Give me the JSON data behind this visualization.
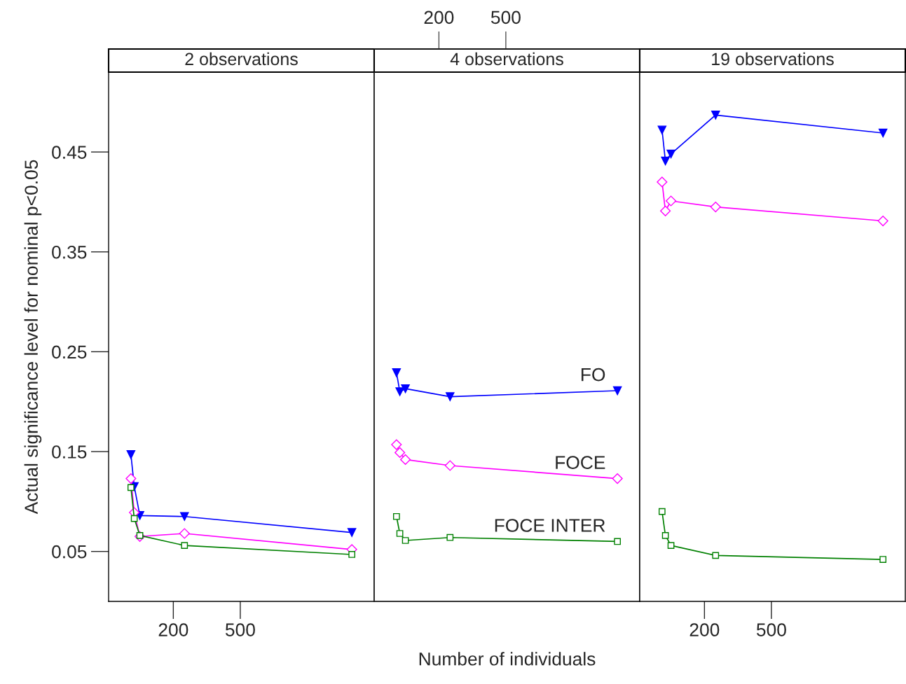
{
  "chart_data": [
    {
      "type": "line",
      "title": "2 observations",
      "ylabel": "Actual significance level for nominal p<0.05",
      "x": [
        10,
        25,
        50,
        250,
        1000
      ],
      "xlim": [
        -90,
        1100
      ],
      "xticks": [
        200,
        500
      ],
      "ylim": [
        0,
        0.53
      ],
      "yticks": [
        0.05,
        0.15,
        0.25,
        0.35,
        0.45
      ],
      "grid": false,
      "legend": false,
      "series": [
        {
          "color": "#0000ff",
          "marker": "triangle",
          "values": [
            0.147,
            0.115,
            0.086,
            0.085,
            0.069
          ]
        },
        {
          "color": "#ff00ff",
          "marker": "diamond",
          "values": [
            0.123,
            0.089,
            0.065,
            0.068,
            0.052
          ]
        },
        {
          "color": "#008000",
          "marker": "square",
          "values": [
            0.114,
            0.083,
            0.066,
            0.056,
            0.047
          ]
        }
      ]
    },
    {
      "type": "line",
      "title": "4 observations",
      "xlabel": "Number of individuals",
      "x": [
        10,
        25,
        50,
        250,
        1000
      ],
      "xlim": [
        -90,
        1100
      ],
      "x2lim": [
        -90,
        1100
      ],
      "x2ticks": [
        200,
        500
      ],
      "ylim": [
        0,
        0.53
      ],
      "tick_labels": false,
      "grid": false,
      "legend": false,
      "series": [
        {
          "name": "FO",
          "color": "#0000ff",
          "marker": "triangle",
          "values": [
            0.229,
            0.21,
            0.213,
            0.205,
            0.211
          ]
        },
        {
          "name": "FOCE",
          "color": "#ff00ff",
          "marker": "diamond",
          "values": [
            0.157,
            0.149,
            0.142,
            0.136,
            0.123
          ]
        },
        {
          "name": "FOCE INTER",
          "color": "#008000",
          "marker": "square",
          "values": [
            0.085,
            0.068,
            0.061,
            0.064,
            0.06
          ]
        }
      ]
    },
    {
      "type": "line",
      "title": "19 observations",
      "x": [
        10,
        25,
        50,
        250,
        1000
      ],
      "xlim": [
        -90,
        1100
      ],
      "xticks": [
        200,
        500
      ],
      "ylim": [
        0,
        0.53
      ],
      "tick_labels": "x",
      "grid": false,
      "legend": false,
      "series": [
        {
          "color": "#0000ff",
          "marker": "triangle",
          "values": [
            0.472,
            0.441,
            0.448,
            0.487,
            0.469
          ]
        },
        {
          "color": "#ff00ff",
          "marker": "diamond",
          "values": [
            0.42,
            0.391,
            0.401,
            0.395,
            0.381
          ]
        },
        {
          "color": "#008000",
          "marker": "square",
          "values": [
            0.09,
            0.066,
            0.056,
            0.046,
            0.042
          ]
        }
      ]
    }
  ]
}
